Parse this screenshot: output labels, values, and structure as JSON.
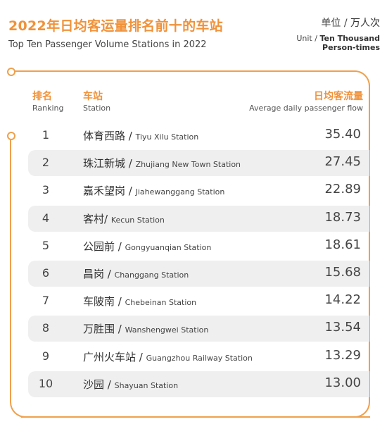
{
  "title_cn": "2022年日均客运量排名前十的车站",
  "title_en": "Top Ten Passenger Volume Stations in 2022",
  "unit_cn_label": "单位 /",
  "unit_cn_value": "万人次",
  "unit_en_label": "Unit /",
  "unit_en_value_line1": "Ten Thousand",
  "unit_en_value_line2": "Person-times",
  "headers": {
    "rank_cn": "排名",
    "rank_en": "Ranking",
    "station_cn": "车站",
    "station_en": "Station",
    "flow_cn": "日均客流量",
    "flow_en": "Average daily passenger flow"
  },
  "accent_color": "#f0923a",
  "chart_data": {
    "type": "table",
    "columns": [
      "Ranking",
      "Station",
      "Average daily passenger flow"
    ],
    "rows": [
      {
        "rank": "1",
        "cn": "体育西路",
        "sep": " / ",
        "en": "Tiyu Xilu Station",
        "value": "35.40"
      },
      {
        "rank": "2",
        "cn": "珠江新城",
        "sep": " / ",
        "en": "Zhujiang New Town Station",
        "value": "27.45"
      },
      {
        "rank": "3",
        "cn": "嘉禾望岗",
        "sep": " / ",
        "en": "Jiahewanggang Station",
        "value": "22.89"
      },
      {
        "rank": "4",
        "cn": "客村",
        "sep": "/ ",
        "en": "Kecun Station",
        "value": "18.73"
      },
      {
        "rank": "5",
        "cn": "公园前",
        "sep": " / ",
        "en": "Gongyuanqian Station",
        "value": "18.61"
      },
      {
        "rank": "6",
        "cn": "昌岗",
        "sep": " / ",
        "en": "Changgang Station",
        "value": "15.68"
      },
      {
        "rank": "7",
        "cn": "车陂南",
        "sep": " / ",
        "en": "Chebeinan Station",
        "value": "14.22"
      },
      {
        "rank": "8",
        "cn": "万胜围",
        "sep": " / ",
        "en": "Wanshengwei Station",
        "value": "13.54"
      },
      {
        "rank": "9",
        "cn": "广州火车站",
        "sep": " / ",
        "en": "Guangzhou Railway Station",
        "value": "13.29"
      },
      {
        "rank": "10",
        "cn": "沙园",
        "sep": " / ",
        "en": "Shayuan Station",
        "value": "13.00"
      }
    ]
  }
}
